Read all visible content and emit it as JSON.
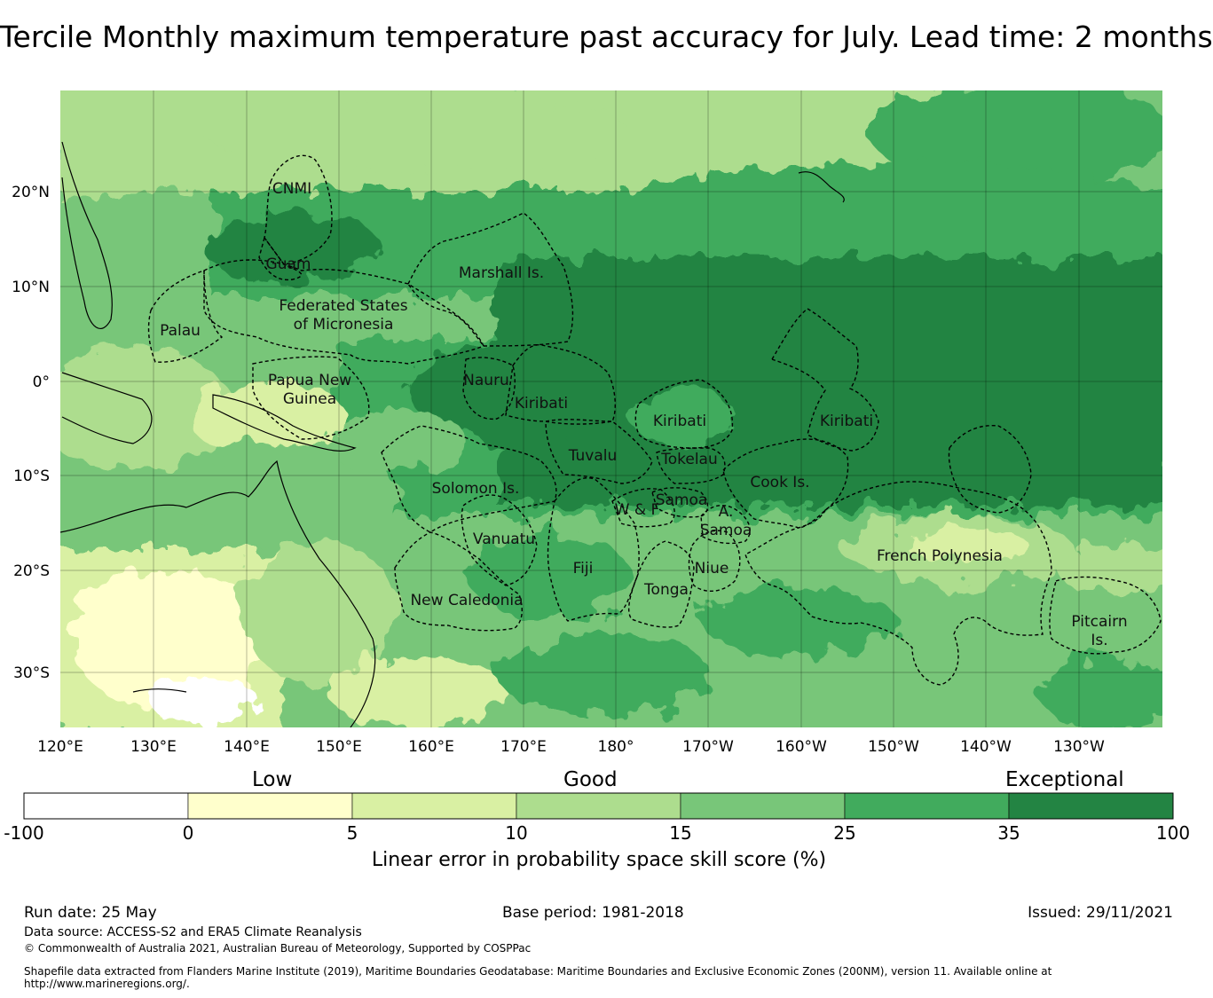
{
  "title": "Tercile Monthly maximum temperature past accuracy for July. Lead time: 2 months",
  "map": {
    "lon_labels": [
      "120°E",
      "130°E",
      "140°E",
      "150°E",
      "160°E",
      "170°E",
      "180°",
      "170°W",
      "160°W",
      "150°W",
      "140°W",
      "130°W"
    ],
    "lat_labels": [
      "20°N",
      "10°N",
      "0°",
      "10°S",
      "20°S",
      "30°S"
    ],
    "regions": [
      {
        "name": "CNMI"
      },
      {
        "name": "Guam"
      },
      {
        "name": "Marshall Is."
      },
      {
        "name": "Federated States"
      },
      {
        "name": "of Micronesia"
      },
      {
        "name": "Palau"
      },
      {
        "name": "Papua New"
      },
      {
        "name": "Guinea"
      },
      {
        "name": "Nauru"
      },
      {
        "name": "Kiribati"
      },
      {
        "name": "Kiribati"
      },
      {
        "name": "Kiribati"
      },
      {
        "name": "Tuvalu"
      },
      {
        "name": "Tokelau"
      },
      {
        "name": "Cook Is."
      },
      {
        "name": "Solomon Is."
      },
      {
        "name": "W & F"
      },
      {
        "name": "Samoa"
      },
      {
        "name": "A."
      },
      {
        "name": "Samoa"
      },
      {
        "name": "Vanuatu"
      },
      {
        "name": "Fiji"
      },
      {
        "name": "Niue"
      },
      {
        "name": "Tonga"
      },
      {
        "name": "French Polynesia"
      },
      {
        "name": "New Caledonia"
      },
      {
        "name": "Pitcairn"
      },
      {
        "name": "Is."
      }
    ]
  },
  "legend": {
    "categories": [
      "Low",
      "Good",
      "Exceptional"
    ],
    "ticks": [
      "-100",
      "0",
      "5",
      "10",
      "15",
      "25",
      "35",
      "100"
    ],
    "colors": [
      "#ffffff",
      "#ffffcc",
      "#d9f0a3",
      "#addd8e",
      "#78c679",
      "#41ab5d",
      "#238443"
    ],
    "title": "Linear error in probability space skill score (%)"
  },
  "footer": {
    "run_date": "Run date: 25 May",
    "base_period": "Base period: 1981-2018",
    "issued": "Issued: 29/11/2021",
    "data_source": "Data source: ACCESS-S2 and ERA5 Climate Reanalysis",
    "copyright": "© Commonwealth of Australia 2021, Australian Bureau of Meteorology, Supported by COSPPac",
    "shapefile": "Shapefile data extracted from Flanders Marine Institute (2019), Maritime Boundaries Geodatabase: Maritime Boundaries and Exclusive Economic Zones (200NM), version 11. Available online at http://www.marineregions.org/."
  }
}
